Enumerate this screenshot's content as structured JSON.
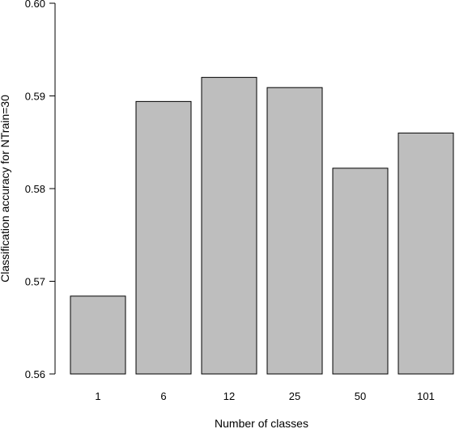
{
  "chart_data": {
    "type": "bar",
    "categories": [
      "1",
      "6",
      "12",
      "25",
      "50",
      "101"
    ],
    "values": [
      0.5684,
      0.5894,
      0.592,
      0.5909,
      0.5822,
      0.586
    ],
    "title": "",
    "xlabel": "Number of classes",
    "ylabel": "Classification accuracy for NTrain=30",
    "ylim": [
      0.56,
      0.6
    ],
    "yticks": [
      "0.56",
      "0.57",
      "0.58",
      "0.59",
      "0.60"
    ],
    "grid": false,
    "bar_color": "#bebebe",
    "bar_edge_color": "#000000"
  }
}
